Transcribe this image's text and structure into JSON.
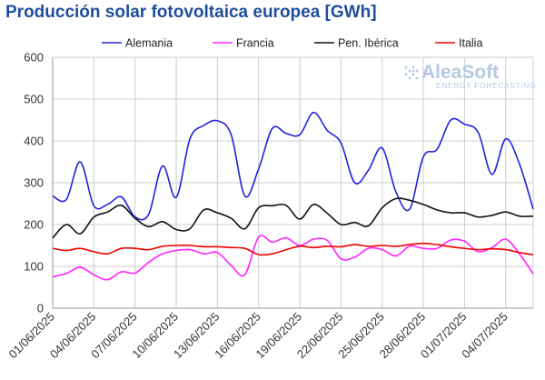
{
  "chart_data": {
    "type": "line",
    "title": "Producción solar fotovoltaica europea [GWh]",
    "xlabel": "",
    "ylabel": "",
    "ylim": [
      0,
      600
    ],
    "yticks": [
      0,
      100,
      200,
      300,
      400,
      500,
      600
    ],
    "grid": true,
    "legend_position": "top",
    "logo": {
      "name": "AleaSoft",
      "tagline": "ENERGY FORECASTING"
    },
    "x": [
      "01/06/2025",
      "02/06/2025",
      "03/06/2025",
      "04/06/2025",
      "05/06/2025",
      "06/06/2025",
      "07/06/2025",
      "08/06/2025",
      "09/06/2025",
      "10/06/2025",
      "11/06/2025",
      "12/06/2025",
      "13/06/2025",
      "14/06/2025",
      "15/06/2025",
      "16/06/2025",
      "17/06/2025",
      "18/06/2025",
      "19/06/2025",
      "20/06/2025",
      "21/06/2025",
      "22/06/2025",
      "23/06/2025",
      "24/06/2025",
      "25/06/2025",
      "26/06/2025",
      "27/06/2025",
      "28/06/2025",
      "29/06/2025",
      "30/06/2025",
      "01/07/2025",
      "02/07/2025",
      "03/07/2025",
      "04/07/2025",
      "05/07/2025",
      "06/07/2025"
    ],
    "xtick_labels": [
      "01/06/2025",
      "04/06/2025",
      "07/06/2025",
      "10/06/2025",
      "13/06/2025",
      "16/06/2025",
      "19/06/2025",
      "22/06/2025",
      "25/06/2025",
      "28/06/2025",
      "01/07/2025",
      "04/07/2025"
    ],
    "series": [
      {
        "name": "Alemania",
        "color": "#2222dd",
        "values": [
          268,
          260,
          350,
          245,
          248,
          266,
          218,
          225,
          340,
          265,
          405,
          437,
          448,
          415,
          268,
          333,
          430,
          418,
          415,
          468,
          425,
          395,
          300,
          330,
          383,
          278,
          237,
          362,
          380,
          450,
          440,
          420,
          320,
          405,
          345,
          237
        ]
      },
      {
        "name": "Francia",
        "color": "#ff22ff",
        "values": [
          75,
          83,
          98,
          80,
          68,
          87,
          84,
          110,
          130,
          138,
          140,
          130,
          133,
          102,
          80,
          170,
          158,
          168,
          150,
          165,
          162,
          118,
          122,
          143,
          140,
          125,
          148,
          143,
          143,
          163,
          160,
          135,
          145,
          165,
          130,
          82
        ]
      },
      {
        "name": "Pen. Ibérica",
        "color": "#111111",
        "values": [
          168,
          200,
          178,
          218,
          230,
          246,
          215,
          195,
          207,
          188,
          190,
          235,
          228,
          215,
          190,
          240,
          245,
          246,
          213,
          248,
          227,
          200,
          205,
          197,
          240,
          262,
          258,
          248,
          235,
          228,
          228,
          218,
          222,
          230,
          220,
          220
        ]
      },
      {
        "name": "Italia",
        "color": "#ee0000",
        "values": [
          143,
          138,
          143,
          135,
          130,
          143,
          143,
          140,
          148,
          150,
          150,
          147,
          147,
          145,
          143,
          128,
          130,
          140,
          148,
          145,
          148,
          147,
          152,
          148,
          150,
          148,
          152,
          155,
          152,
          147,
          143,
          140,
          142,
          140,
          133,
          128
        ]
      }
    ]
  }
}
